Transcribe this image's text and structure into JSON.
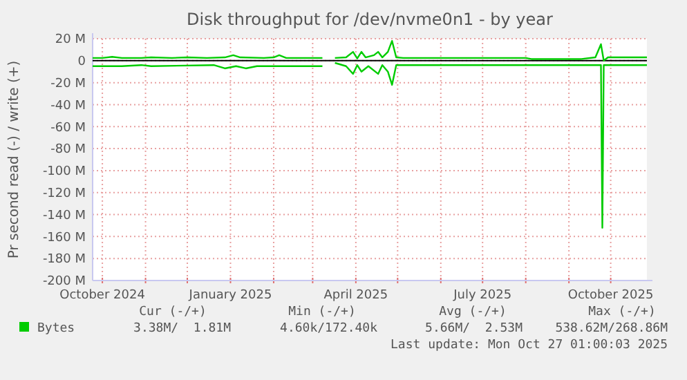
{
  "chart_data": {
    "type": "line",
    "title": "Disk throughput for /dev/nvme0n1 - by year",
    "ylabel": "Pr second read (-) / write (+)",
    "xlim": [
      "2024-09-24",
      "2025-10-27"
    ],
    "xticks": [
      {
        "value": "2024-10-01",
        "label": "October 2024"
      },
      {
        "value": "2024-11-01",
        "label": null
      },
      {
        "value": "2024-12-01",
        "label": null
      },
      {
        "value": "2025-01-01",
        "label": "January 2025"
      },
      {
        "value": "2025-02-01",
        "label": null
      },
      {
        "value": "2025-03-01",
        "label": null
      },
      {
        "value": "2025-04-01",
        "label": "April 2025"
      },
      {
        "value": "2025-05-01",
        "label": null
      },
      {
        "value": "2025-06-01",
        "label": null
      },
      {
        "value": "2025-07-01",
        "label": "July 2025"
      },
      {
        "value": "2025-08-01",
        "label": null
      },
      {
        "value": "2025-09-01",
        "label": null
      },
      {
        "value": "2025-10-01",
        "label": "October 2025"
      }
    ],
    "ylim": [
      -200,
      20
    ],
    "yticks": [
      {
        "value": 20,
        "label": "20 M"
      },
      {
        "value": 0,
        "label": "0"
      },
      {
        "value": -20,
        "label": "-20 M"
      },
      {
        "value": -40,
        "label": "-40 M"
      },
      {
        "value": -60,
        "label": "-60 M"
      },
      {
        "value": -80,
        "label": "-80 M"
      },
      {
        "value": -100,
        "label": "-100 M"
      },
      {
        "value": -120,
        "label": "-120 M"
      },
      {
        "value": -140,
        "label": "-140 M"
      },
      {
        "value": -160,
        "label": "-160 M"
      },
      {
        "value": -180,
        "label": "-180 M"
      },
      {
        "value": -200,
        "label": "-200 M"
      }
    ],
    "grid": true,
    "legend": "bottom left",
    "line_style": "solid",
    "ref_lines": [
      {
        "axis": "y",
        "value": 0,
        "color": "#000000"
      }
    ],
    "series": [
      {
        "name": "Bytes",
        "color": "#00cc00",
        "x": [
          "2024-09-24",
          "2024-10-01",
          "2024-10-08",
          "2024-10-15",
          "2024-10-29",
          "2024-11-05",
          "2024-11-20",
          "2024-12-01",
          "2024-12-15",
          "2024-12-28",
          "2025-01-03",
          "2025-01-08",
          "2025-01-25",
          "2025-02-01",
          "2025-02-05",
          "2025-02-10",
          "2025-02-20",
          "2025-03-08",
          "2025-03-10",
          "2025-03-17",
          "2025-03-25",
          "2025-03-30",
          "2025-04-02",
          "2025-04-05",
          "2025-04-08",
          "2025-04-14",
          "2025-04-17",
          "2025-04-20",
          "2025-04-24",
          "2025-04-27",
          "2025-04-30",
          "2025-05-05",
          "2025-06-01",
          "2025-07-01",
          "2025-08-01",
          "2025-08-05",
          "2025-09-10",
          "2025-09-20",
          "2025-09-24",
          "2025-09-26",
          "2025-09-29",
          "2025-10-10",
          "2025-10-27"
        ],
        "values": [
          2.5,
          2.5,
          3.5,
          2.5,
          2.5,
          3,
          2.5,
          3,
          2.5,
          3,
          5,
          3,
          2.5,
          3,
          5,
          2.5,
          2.5,
          2.5,
          null,
          2.5,
          3,
          8,
          2,
          8,
          3,
          5,
          8,
          3,
          8,
          18,
          3,
          2.5,
          2.5,
          2.5,
          2.5,
          1.5,
          1.5,
          3,
          15,
          0,
          3,
          3,
          3
        ]
      },
      {
        "color": "#00cc00",
        "x": [
          "2024-09-24",
          "2024-10-15",
          "2024-10-29",
          "2024-11-05",
          "2024-12-20",
          "2024-12-28",
          "2025-01-05",
          "2025-01-12",
          "2025-01-20",
          "2025-02-01",
          "2025-03-08",
          "2025-03-10",
          "2025-03-17",
          "2025-03-25",
          "2025-03-30",
          "2025-04-02",
          "2025-04-05",
          "2025-04-10",
          "2025-04-17",
          "2025-04-20",
          "2025-04-24",
          "2025-04-27",
          "2025-04-30",
          "2025-05-05",
          "2025-06-01",
          "2025-07-01",
          "2025-09-24",
          "2025-09-25",
          "2025-09-26",
          "2025-10-27"
        ],
        "values": [
          -5,
          -5,
          -4,
          -5,
          -4,
          -7,
          -5,
          -7,
          -5,
          -5,
          -5,
          null,
          -2,
          -5,
          -12,
          -4,
          -10,
          -5,
          -12,
          -4,
          -10,
          -22,
          -4,
          -4,
          -4,
          -4,
          -4,
          -152,
          -4,
          -4
        ]
      }
    ],
    "annotations": [
      "Cur (-/+)",
      "Min (-/+)",
      "Avg (-/+)",
      "Max (-/+)",
      "3.38M/  1.81M",
      "4.60k/172.40k",
      "5.66M/  2.53M",
      "538.62M/268.86M",
      "Last update: Mon Oct 27 01:00:03 2025"
    ]
  }
}
